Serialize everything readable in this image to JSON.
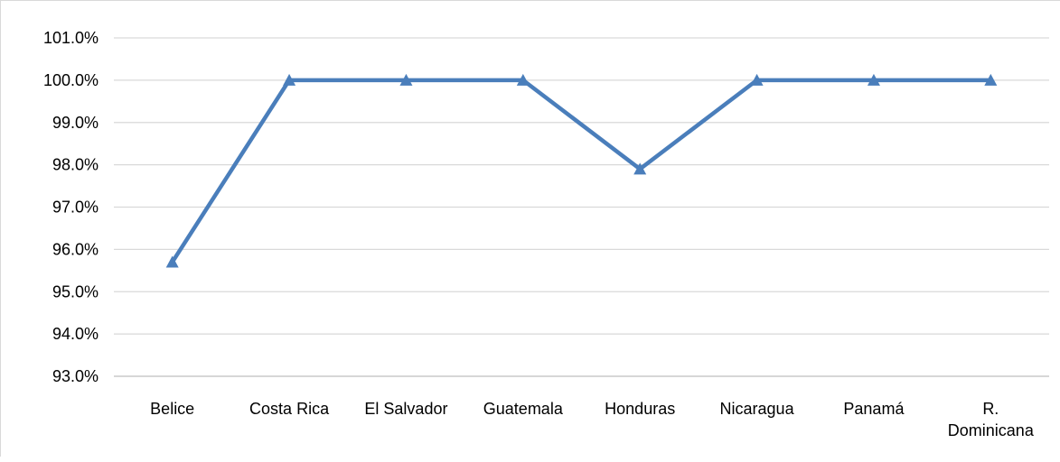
{
  "chart_data": {
    "type": "line",
    "categories": [
      "Belice",
      "Costa Rica",
      "El Salvador",
      "Guatemala",
      "Honduras",
      "Nicaragua",
      "Panamá",
      "R. Dominicana"
    ],
    "category_label_lines": [
      [
        "Belice"
      ],
      [
        "Costa Rica"
      ],
      [
        "El Salvador"
      ],
      [
        "Guatemala"
      ],
      [
        "Honduras"
      ],
      [
        "Nicaragua"
      ],
      [
        "Panamá"
      ],
      [
        "R.",
        "Dominicana"
      ]
    ],
    "series": [
      {
        "values": [
          95.7,
          100.0,
          100.0,
          100.0,
          97.9,
          100.0,
          100.0,
          100.0
        ]
      }
    ],
    "yticks": [
      93.0,
      94.0,
      95.0,
      96.0,
      97.0,
      98.0,
      99.0,
      100.0,
      101.0
    ],
    "ytick_labels": [
      "93.0%",
      "94.0%",
      "95.0%",
      "96.0%",
      "97.0%",
      "98.0%",
      "99.0%",
      "100.0%",
      "101.0%"
    ],
    "ylim": [
      93.0,
      101.0
    ],
    "title": "",
    "xlabel": "",
    "ylabel": "",
    "grid": true,
    "legend": "none",
    "marker": "triangle",
    "colors": {
      "line": "#4a7ebb",
      "grid": "#d9d9d9",
      "axis": "#bfbfbf"
    }
  }
}
